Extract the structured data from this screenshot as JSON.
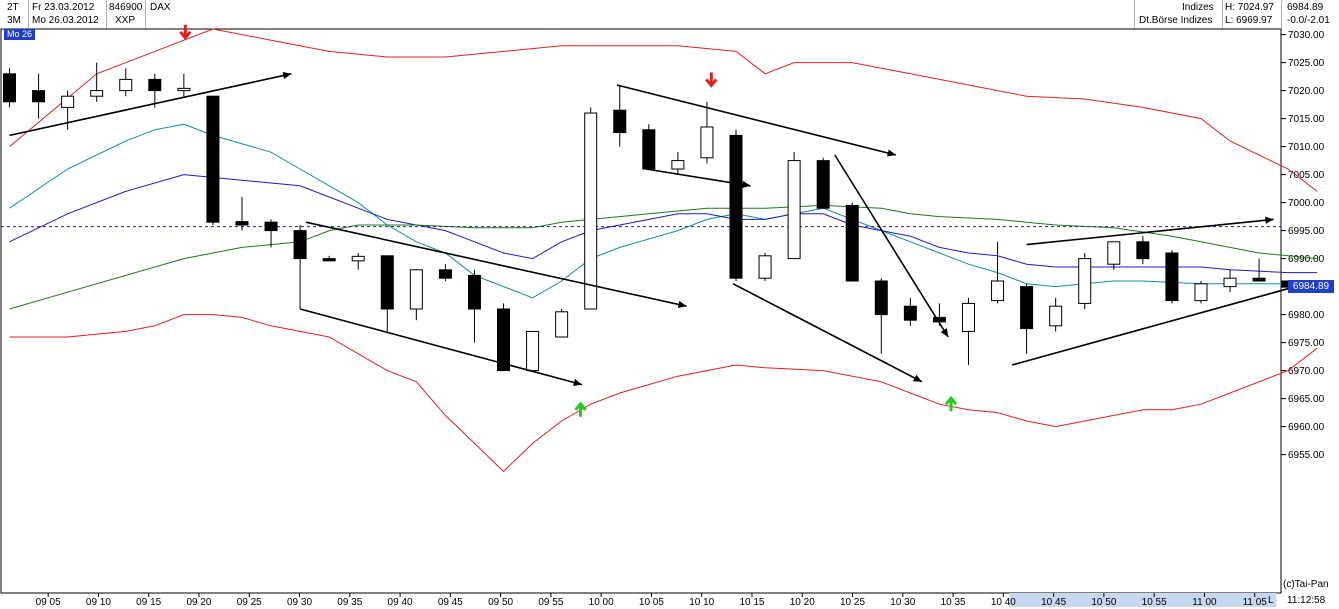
{
  "header": {
    "row1": {
      "period": "2T",
      "date": "Fr 23.03.2012",
      "wkn": "846900",
      "name": "DAX",
      "group": "Indizes",
      "high": "H: 7024.97",
      "last": "6984.89"
    },
    "row2": {
      "period": "3M",
      "date": "Mo 26.03.2012",
      "exchange": "XXP",
      "group": "Dt.Börse Indizes",
      "low": "L: 6969.97",
      "change": "-0.0/-2.01"
    },
    "badge": "Mo 26"
  },
  "footer": {
    "credit": "(c)Tai-Pan",
    "clock": "11:12:58",
    "l_marker": "L"
  },
  "price_tag": "6984.89",
  "colors": {
    "candle": "#000000",
    "bollinger": "#e02020",
    "ma_fast": "#1090a0",
    "ma_mid": "#1c1cc8",
    "ma_slow": "#1a7a1a",
    "ref_line": "#1c1cc8",
    "up_arrow": "#22cc22",
    "down_arrow": "#e02020",
    "axis_highlight": "#c8d8f0"
  },
  "chart_data": {
    "type": "candlestick",
    "title": "DAX",
    "xlabel": "",
    "ylabel": "",
    "ylim": [
      6950,
      7031
    ],
    "y_ticks": [
      6955,
      6960,
      6965,
      6970,
      6975,
      6980,
      6985,
      6990,
      6995,
      7000,
      7005,
      7010,
      7015,
      7020,
      7025,
      7030
    ],
    "y_tick_labels": [
      "6955.00",
      "6960.00",
      "6965.00",
      "6970.00",
      "6975.00",
      "6980.00",
      "6985.00",
      "6990.00",
      "6995.00",
      "7000.00",
      "7005.00",
      "7010.00",
      "7015.00",
      "7020.00",
      "7025.00",
      "7030.00"
    ],
    "x_tick_labels": [
      "09 05",
      "09 10",
      "09 15",
      "09 20",
      "09 25",
      "09 30",
      "09 35",
      "09 40",
      "09 45",
      "09 50",
      "09 55",
      "10 00",
      "10 05",
      "10 10",
      "10 15",
      "10 20",
      "10 25",
      "10 30",
      "10 35",
      "10 40",
      "10 45",
      "10 50",
      "10 55",
      "11 00",
      "11 05"
    ],
    "reference_level": 6995.7,
    "candles": [
      {
        "o": 7023,
        "h": 7024,
        "l": 7017,
        "c": 7018
      },
      {
        "o": 7020,
        "h": 7023,
        "l": 7015,
        "c": 7018
      },
      {
        "o": 7017,
        "h": 7020,
        "l": 7013,
        "c": 7019
      },
      {
        "o": 7019,
        "h": 7025,
        "l": 7018,
        "c": 7020
      },
      {
        "o": 7020,
        "h": 7024,
        "l": 7019,
        "c": 7022
      },
      {
        "o": 7022,
        "h": 7023,
        "l": 7017,
        "c": 7020
      },
      {
        "o": 7020,
        "h": 7023,
        "l": 7019,
        "c": 7020.4
      },
      {
        "o": 7019,
        "h": 7019,
        "l": 6996,
        "c": 6996.5
      },
      {
        "o": 6996.6,
        "h": 7001,
        "l": 6995,
        "c": 6996
      },
      {
        "o": 6996.5,
        "h": 6997,
        "l": 6992,
        "c": 6995
      },
      {
        "o": 6995,
        "h": 6996,
        "l": 6981,
        "c": 6990
      },
      {
        "o": 6990,
        "h": 6990.5,
        "l": 6990,
        "c": 6989.6
      },
      {
        "o": 6989.6,
        "h": 6991,
        "l": 6988,
        "c": 6990.4
      },
      {
        "o": 6990.5,
        "h": 6990.5,
        "l": 6977,
        "c": 6981
      },
      {
        "o": 6981,
        "h": 6988,
        "l": 6979,
        "c": 6988
      },
      {
        "o": 6988,
        "h": 6989,
        "l": 6986,
        "c": 6986.5
      },
      {
        "o": 6987,
        "h": 6988,
        "l": 6975,
        "c": 6981
      },
      {
        "o": 6981,
        "h": 6982,
        "l": 6970,
        "c": 6970
      },
      {
        "o": 6970,
        "h": 6977,
        "l": 6970,
        "c": 6977
      },
      {
        "o": 6976,
        "h": 6981,
        "l": 6976,
        "c": 6980.5
      },
      {
        "o": 6981,
        "h": 7017,
        "l": 6981,
        "c": 7016
      },
      {
        "o": 7016.5,
        "h": 7021,
        "l": 7010,
        "c": 7012.5
      },
      {
        "o": 7013,
        "h": 7014,
        "l": 7006,
        "c": 7006
      },
      {
        "o": 7006,
        "h": 7009,
        "l": 7005,
        "c": 7007.5
      },
      {
        "o": 7008,
        "h": 7018,
        "l": 7007,
        "c": 7013.5
      },
      {
        "o": 7012,
        "h": 7013,
        "l": 6986,
        "c": 6986.5
      },
      {
        "o": 6986.5,
        "h": 6991,
        "l": 6986,
        "c": 6990.5
      },
      {
        "o": 6990,
        "h": 7009,
        "l": 6990,
        "c": 7007.5
      },
      {
        "o": 7007.5,
        "h": 7008,
        "l": 6999,
        "c": 6999
      },
      {
        "o": 6999.5,
        "h": 7000,
        "l": 6986,
        "c": 6986
      },
      {
        "o": 6986,
        "h": 6986.5,
        "l": 6973,
        "c": 6980
      },
      {
        "o": 6981.5,
        "h": 6983,
        "l": 6978,
        "c": 6979
      },
      {
        "o": 6979.5,
        "h": 6982,
        "l": 6978,
        "c": 6978.7
      },
      {
        "o": 6977,
        "h": 6983,
        "l": 6971,
        "c": 6982
      },
      {
        "o": 6982.5,
        "h": 6993,
        "l": 6982,
        "c": 6986
      },
      {
        "o": 6985,
        "h": 6985.5,
        "l": 6973,
        "c": 6977.5
      },
      {
        "o": 6978,
        "h": 6983,
        "l": 6977,
        "c": 6981.5
      },
      {
        "o": 6982,
        "h": 6991,
        "l": 6981,
        "c": 6990
      },
      {
        "o": 6989,
        "h": 6993,
        "l": 6988,
        "c": 6993
      },
      {
        "o": 6993,
        "h": 6994,
        "l": 6989,
        "c": 6990
      },
      {
        "o": 6991,
        "h": 6991.5,
        "l": 6982,
        "c": 6982.5
      },
      {
        "o": 6982.5,
        "h": 6986,
        "l": 6982,
        "c": 6985.5
      },
      {
        "o": 6985,
        "h": 6988,
        "l": 6984,
        "c": 6986.5
      },
      {
        "o": 6986.5,
        "h": 6990,
        "l": 6986,
        "c": 6986
      },
      {
        "o": 6986,
        "h": 6986,
        "l": 6984.5,
        "c": 6984.9
      }
    ],
    "series": [
      {
        "role": "bollinger_upper",
        "points": [
          [
            0,
            7010
          ],
          [
            3,
            7023
          ],
          [
            6,
            7029
          ],
          [
            7,
            7031
          ],
          [
            9,
            7029
          ],
          [
            11,
            7027
          ],
          [
            13,
            7026
          ],
          [
            15,
            7026
          ],
          [
            17,
            7027
          ],
          [
            19,
            7028
          ],
          [
            21,
            7028
          ],
          [
            23,
            7028
          ],
          [
            25,
            7027
          ],
          [
            26,
            7023
          ],
          [
            27,
            7025
          ],
          [
            29,
            7025
          ],
          [
            31,
            7023
          ],
          [
            33,
            7021
          ],
          [
            35,
            7019
          ],
          [
            37,
            7018.5
          ],
          [
            39,
            7017
          ],
          [
            41,
            7015
          ],
          [
            42,
            7011
          ],
          [
            44,
            7006
          ],
          [
            45,
            7002
          ]
        ]
      },
      {
        "role": "bollinger_lower",
        "points": [
          [
            0,
            6976
          ],
          [
            2,
            6976
          ],
          [
            4,
            6977
          ],
          [
            5,
            6978
          ],
          [
            6,
            6980
          ],
          [
            7,
            6980
          ],
          [
            8,
            6979.5
          ],
          [
            9,
            6978
          ],
          [
            11,
            6976
          ],
          [
            12,
            6973
          ],
          [
            13,
            6970
          ],
          [
            14,
            6968
          ],
          [
            15,
            6962
          ],
          [
            16,
            6957
          ],
          [
            17,
            6952
          ],
          [
            18,
            6957
          ],
          [
            19,
            6961
          ],
          [
            20,
            6964
          ],
          [
            21,
            6966
          ],
          [
            23,
            6969
          ],
          [
            24,
            6970
          ],
          [
            25,
            6971
          ],
          [
            26,
            6970.5
          ],
          [
            28,
            6970
          ],
          [
            30,
            6968
          ],
          [
            31,
            6966
          ],
          [
            32,
            6964
          ],
          [
            33,
            6963
          ],
          [
            34,
            6962.5
          ],
          [
            35,
            6961
          ],
          [
            36,
            6960
          ],
          [
            37,
            6961
          ],
          [
            38,
            6962
          ],
          [
            39,
            6963
          ],
          [
            40,
            6963
          ],
          [
            41,
            6964
          ],
          [
            42,
            6966
          ],
          [
            44,
            6970
          ],
          [
            45,
            6974
          ]
        ]
      },
      {
        "role": "ma_fast",
        "points": [
          [
            0,
            6999
          ],
          [
            2,
            7006
          ],
          [
            4,
            7011
          ],
          [
            5,
            7013
          ],
          [
            6,
            7014
          ],
          [
            7,
            7012
          ],
          [
            9,
            7009
          ],
          [
            10,
            7006
          ],
          [
            11,
            7003
          ],
          [
            12,
            7000
          ],
          [
            13,
            6996
          ],
          [
            14,
            6993
          ],
          [
            15,
            6991
          ],
          [
            16,
            6987
          ],
          [
            17,
            6985
          ],
          [
            18,
            6983
          ],
          [
            19,
            6986
          ],
          [
            20,
            6990
          ],
          [
            21,
            6992
          ],
          [
            23,
            6995
          ],
          [
            24,
            6997
          ],
          [
            25,
            6998
          ],
          [
            26,
            6997
          ],
          [
            27,
            6998
          ],
          [
            28,
            6999
          ],
          [
            29,
            6997
          ],
          [
            30,
            6995
          ],
          [
            31,
            6993
          ],
          [
            32,
            6991
          ],
          [
            33,
            6989
          ],
          [
            34,
            6987.5
          ],
          [
            35,
            6985.5
          ],
          [
            36,
            6985
          ],
          [
            37,
            6985.5
          ],
          [
            38,
            6986
          ],
          [
            39,
            6986
          ],
          [
            41,
            6985.5
          ],
          [
            42,
            6985.5
          ],
          [
            44,
            6985.5
          ],
          [
            45,
            6985.5
          ]
        ]
      },
      {
        "role": "ma_mid",
        "points": [
          [
            0,
            6993
          ],
          [
            2,
            6998
          ],
          [
            4,
            7002
          ],
          [
            6,
            7005
          ],
          [
            8,
            7004
          ],
          [
            10,
            7003
          ],
          [
            11,
            7001
          ],
          [
            12,
            6999
          ],
          [
            13,
            6997
          ],
          [
            14,
            6996
          ],
          [
            15,
            6995
          ],
          [
            16,
            6993
          ],
          [
            17,
            6991
          ],
          [
            18,
            6990
          ],
          [
            19,
            6993
          ],
          [
            20,
            6995
          ],
          [
            21,
            6996
          ],
          [
            22,
            6997
          ],
          [
            23,
            6998
          ],
          [
            24,
            6998
          ],
          [
            25,
            6997
          ],
          [
            26,
            6997
          ],
          [
            27,
            6998
          ],
          [
            28,
            6998
          ],
          [
            29,
            6996
          ],
          [
            30,
            6995
          ],
          [
            31,
            6994
          ],
          [
            32,
            6992
          ],
          [
            33,
            6991
          ],
          [
            34,
            6990.5
          ],
          [
            35,
            6989
          ],
          [
            36,
            6988.5
          ],
          [
            37,
            6988.5
          ],
          [
            38,
            6988.5
          ],
          [
            39,
            6988.5
          ],
          [
            40,
            6988.5
          ],
          [
            41,
            6988.5
          ],
          [
            42,
            6988
          ],
          [
            44,
            6987.5
          ],
          [
            45,
            6987.5
          ]
        ]
      },
      {
        "role": "ma_slow",
        "points": [
          [
            0,
            6981
          ],
          [
            2,
            6984
          ],
          [
            4,
            6987
          ],
          [
            6,
            6990
          ],
          [
            8,
            6992
          ],
          [
            10,
            6993
          ],
          [
            11,
            6995
          ],
          [
            12,
            6996
          ],
          [
            14,
            6996
          ],
          [
            16,
            6995.5
          ],
          [
            18,
            6995.5
          ],
          [
            19,
            6996.5
          ],
          [
            20,
            6997
          ],
          [
            22,
            6998
          ],
          [
            24,
            6999
          ],
          [
            26,
            6999
          ],
          [
            28,
            6999.5
          ],
          [
            30,
            6999
          ],
          [
            31,
            6998
          ],
          [
            32,
            6997.5
          ],
          [
            34,
            6997
          ],
          [
            35,
            6996.5
          ],
          [
            36,
            6996
          ],
          [
            38,
            6995.5
          ],
          [
            40,
            6994
          ],
          [
            41,
            6993
          ],
          [
            42,
            6992
          ],
          [
            43,
            6991
          ],
          [
            44,
            6990.5
          ],
          [
            45,
            6990
          ]
        ]
      }
    ],
    "trendlines": [
      {
        "from": [
          0,
          7012
        ],
        "to": [
          9.7,
          7023
        ],
        "arrow": true
      },
      {
        "from": [
          10.2,
          6996.5
        ],
        "to": [
          23.3,
          6981.5
        ],
        "arrow": true
      },
      {
        "from": [
          10,
          6981
        ],
        "to": [
          19.7,
          6967.5
        ],
        "arrow": true
      },
      {
        "from": [
          20.9,
          7021
        ],
        "to": [
          30.5,
          7008.5
        ],
        "arrow": true
      },
      {
        "from": [
          21.9,
          7006
        ],
        "to": [
          25.5,
          7003
        ],
        "arrow": true
      },
      {
        "from": [
          24.9,
          6985.5
        ],
        "to": [
          31.4,
          6968
        ],
        "arrow": true
      },
      {
        "from": [
          28.4,
          7008.5
        ],
        "to": [
          32.3,
          6976
        ],
        "arrow": true
      },
      {
        "from": [
          34.5,
          6971
        ],
        "to": [
          44.6,
          6985.5
        ],
        "arrow": true
      },
      {
        "from": [
          35,
          6992.5
        ],
        "to": [
          43.5,
          6997
        ],
        "arrow": true
      }
    ],
    "markers": [
      {
        "type": "down",
        "at": [
          6.05,
          7030.5
        ]
      },
      {
        "type": "down",
        "at": [
          24.15,
          7022
        ]
      },
      {
        "type": "up",
        "at": [
          19.65,
          6963
        ]
      },
      {
        "type": "up",
        "at": [
          32.4,
          6964
        ]
      }
    ]
  }
}
